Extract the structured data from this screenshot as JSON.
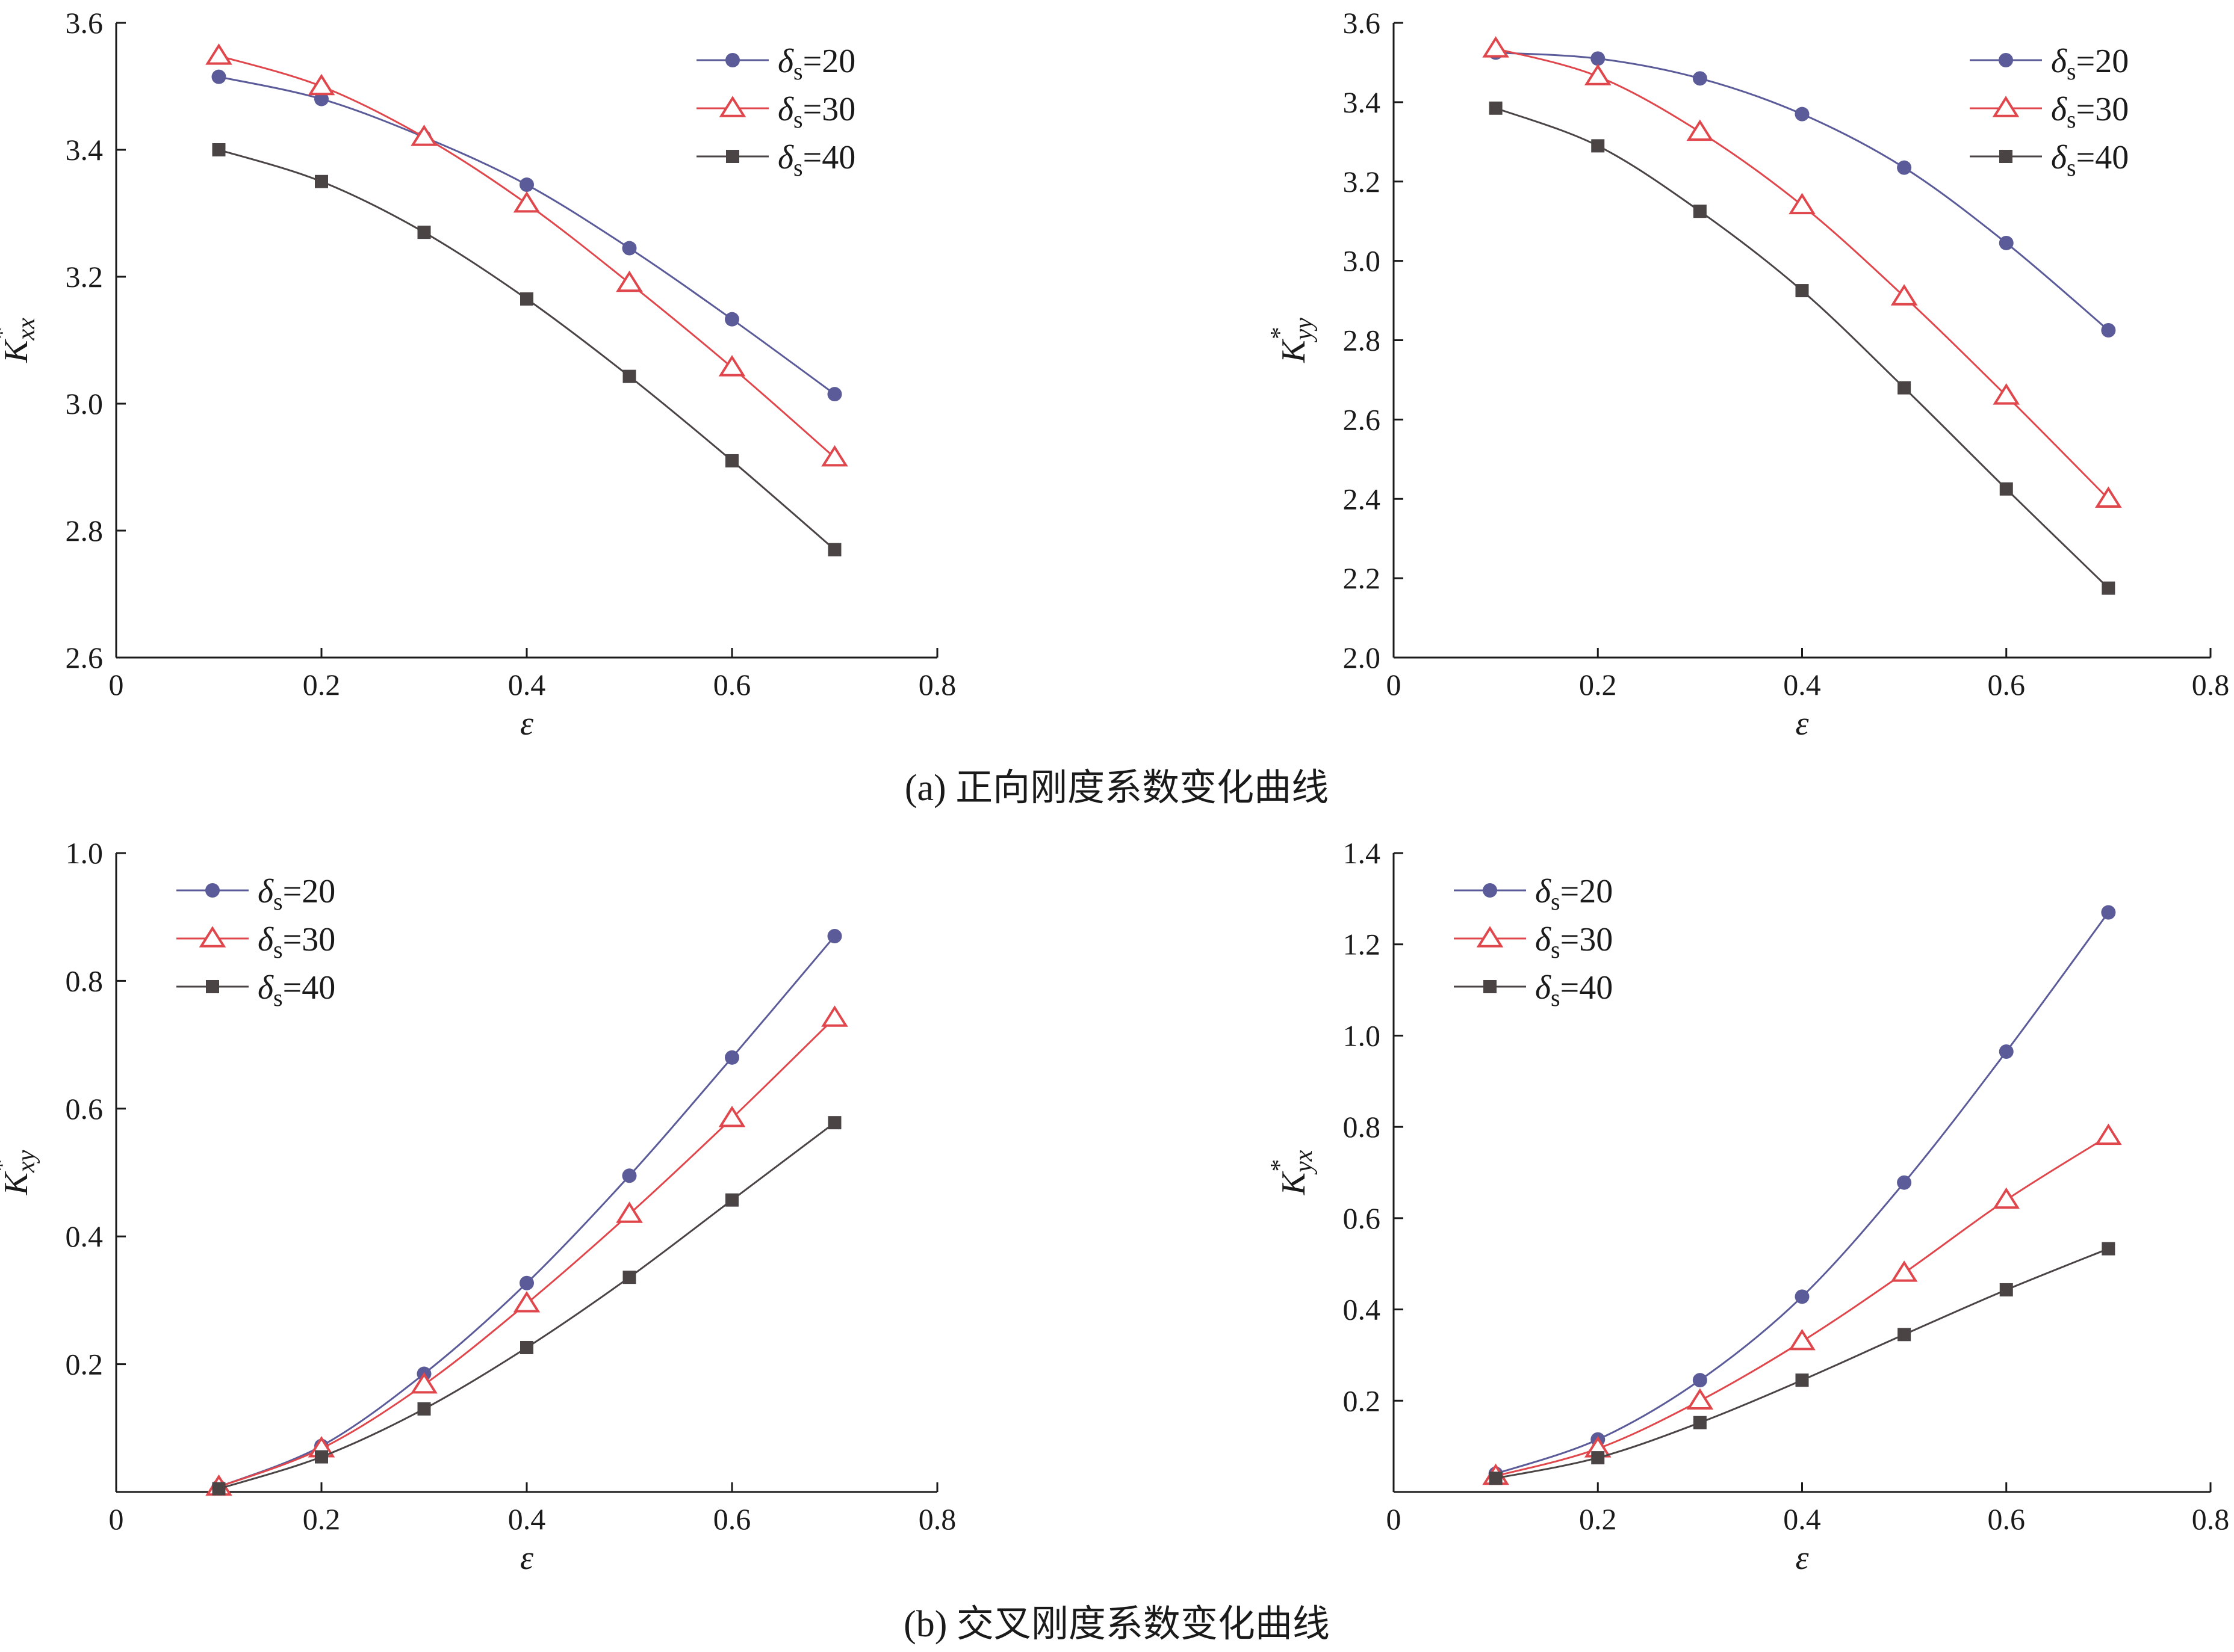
{
  "captions": {
    "a": "(a)  正向刚度系数变化曲线",
    "b": "(b)  交叉刚度系数变化曲线"
  },
  "legend_symbol": "δ",
  "legend_subscript": "s",
  "colors": {
    "series_20": "#5b5b9a",
    "series_30": "#e0474c",
    "series_40": "#4a4444",
    "axis": "#1a1a1a"
  },
  "chart_data": [
    {
      "id": "kxx",
      "type": "line",
      "xlabel": "ε",
      "ylabel_main": "K",
      "ylabel_sub": "xx",
      "ylabel_sup": "*",
      "xlim": [
        0,
        0.8
      ],
      "ylim": [
        2.6,
        3.6
      ],
      "xticks": [
        0,
        0.2,
        0.4,
        0.6,
        0.8
      ],
      "xtick_labels": [
        "0",
        "0.2",
        "0.4",
        "0.6",
        "0.8"
      ],
      "yticks": [
        2.6,
        2.8,
        3.0,
        3.2,
        3.4,
        3.6
      ],
      "ytick_labels": [
        "2.6",
        "2.8",
        "3.0",
        "3.2",
        "3.4",
        "3.6"
      ],
      "legend_position": "top-right",
      "x": [
        0.1,
        0.2,
        0.3,
        0.4,
        0.5,
        0.6,
        0.7
      ],
      "series": [
        {
          "name": "=20",
          "marker": "circle",
          "values": [
            3.515,
            3.48,
            3.42,
            3.345,
            3.245,
            3.133,
            3.015
          ]
        },
        {
          "name": "=30",
          "marker": "triangle",
          "values": [
            3.548,
            3.5,
            3.42,
            3.315,
            3.19,
            3.057,
            2.915
          ]
        },
        {
          "name": "=40",
          "marker": "square",
          "values": [
            3.4,
            3.35,
            3.27,
            3.165,
            3.043,
            2.91,
            2.77
          ]
        }
      ]
    },
    {
      "id": "kyy",
      "type": "line",
      "xlabel": "ε",
      "ylabel_main": "K",
      "ylabel_sub": "yy",
      "ylabel_sup": "*",
      "xlim": [
        0,
        0.8
      ],
      "ylim": [
        2.0,
        3.6
      ],
      "xticks": [
        0,
        0.2,
        0.4,
        0.6,
        0.8
      ],
      "xtick_labels": [
        "0",
        "0.2",
        "0.4",
        "0.6",
        "0.8"
      ],
      "yticks": [
        2.0,
        2.2,
        2.4,
        2.6,
        2.8,
        3.0,
        3.2,
        3.4,
        3.6
      ],
      "ytick_labels": [
        "2.0",
        "2.2",
        "2.4",
        "2.6",
        "2.8",
        "3.0",
        "3.2",
        "3.4",
        "3.6"
      ],
      "legend_position": "top-right",
      "x": [
        0.1,
        0.2,
        0.3,
        0.4,
        0.5,
        0.6,
        0.7
      ],
      "series": [
        {
          "name": "=20",
          "marker": "circle",
          "values": [
            3.525,
            3.51,
            3.46,
            3.37,
            3.235,
            3.045,
            2.825
          ]
        },
        {
          "name": "=30",
          "marker": "triangle",
          "values": [
            3.535,
            3.465,
            3.325,
            3.14,
            2.91,
            2.66,
            2.4
          ]
        },
        {
          "name": "=40",
          "marker": "square",
          "values": [
            3.385,
            3.29,
            3.125,
            2.925,
            2.68,
            2.425,
            2.175
          ]
        }
      ]
    },
    {
      "id": "kxy",
      "type": "line",
      "xlabel": "ε",
      "ylabel_main": "K",
      "ylabel_sub": "xy",
      "ylabel_sup": "*",
      "xlim": [
        0,
        0.8
      ],
      "ylim": [
        0,
        1.0
      ],
      "xticks": [
        0,
        0.2,
        0.4,
        0.6,
        0.8
      ],
      "xtick_labels": [
        "0",
        "0.2",
        "0.4",
        "0.6",
        "0.8"
      ],
      "yticks": [
        0.2,
        0.4,
        0.6,
        0.8,
        1.0
      ],
      "ytick_labels": [
        "0.2",
        "0.4",
        "0.6",
        "0.8",
        "1.0"
      ],
      "legend_position": "top-left",
      "x": [
        0.1,
        0.2,
        0.3,
        0.4,
        0.5,
        0.6,
        0.7
      ],
      "series": [
        {
          "name": "=20",
          "marker": "circle",
          "values": [
            0.008,
            0.072,
            0.185,
            0.327,
            0.495,
            0.68,
            0.87
          ]
        },
        {
          "name": "=30",
          "marker": "triangle",
          "values": [
            0.008,
            0.068,
            0.168,
            0.295,
            0.435,
            0.585,
            0.742
          ]
        },
        {
          "name": "=40",
          "marker": "square",
          "values": [
            0.005,
            0.055,
            0.13,
            0.226,
            0.336,
            0.457,
            0.578
          ]
        }
      ]
    },
    {
      "id": "kyx",
      "type": "line",
      "xlabel": "ε",
      "ylabel_main": "K",
      "ylabel_sub": "yx",
      "ylabel_sup": "*",
      "xlim": [
        0,
        0.8
      ],
      "ylim": [
        0,
        1.4
      ],
      "xticks": [
        0,
        0.2,
        0.4,
        0.6,
        0.8
      ],
      "xtick_labels": [
        "0",
        "0.2",
        "0.4",
        "0.6",
        "0.8"
      ],
      "yticks": [
        0.2,
        0.4,
        0.6,
        0.8,
        1.0,
        1.2,
        1.4
      ],
      "ytick_labels": [
        "0.2",
        "0.4",
        "0.6",
        "0.8",
        "1.0",
        "1.2",
        "1.4"
      ],
      "legend_position": "top-left",
      "x": [
        0.1,
        0.2,
        0.3,
        0.4,
        0.5,
        0.6,
        0.7
      ],
      "series": [
        {
          "name": "=20",
          "marker": "circle",
          "values": [
            0.04,
            0.115,
            0.245,
            0.428,
            0.678,
            0.965,
            1.27
          ]
        },
        {
          "name": "=30",
          "marker": "triangle",
          "values": [
            0.035,
            0.095,
            0.2,
            0.33,
            0.48,
            0.64,
            0.78
          ]
        },
        {
          "name": "=40",
          "marker": "square",
          "values": [
            0.03,
            0.075,
            0.152,
            0.245,
            0.345,
            0.443,
            0.533
          ]
        }
      ]
    }
  ]
}
